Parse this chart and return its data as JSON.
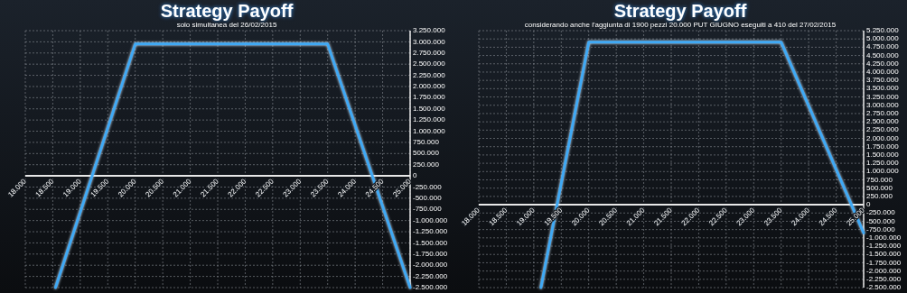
{
  "chart_data": [
    {
      "type": "line",
      "title": "Strategy Payoff",
      "subtitle": "solo simultanea del 26/02/2015",
      "series": [
        {
          "color": "#3fa9f5",
          "x": [
            18550,
            20000,
            23500,
            25000
          ],
          "values": [
            -2500000,
            2950000,
            2950000,
            -2500000
          ]
        }
      ],
      "xlim": [
        18000,
        25000
      ],
      "xticks": [
        {
          "value": 18000,
          "label": "18.000"
        },
        {
          "value": 18500,
          "label": "18.500"
        },
        {
          "value": 19000,
          "label": "19.000"
        },
        {
          "value": 19500,
          "label": "19.500"
        },
        {
          "value": 20000,
          "label": "20.000"
        },
        {
          "value": 20500,
          "label": "20.500"
        },
        {
          "value": 21000,
          "label": "21.000"
        },
        {
          "value": 21500,
          "label": "21.500"
        },
        {
          "value": 22000,
          "label": "22.000"
        },
        {
          "value": 22500,
          "label": "22.500"
        },
        {
          "value": 23000,
          "label": "23.000"
        },
        {
          "value": 23500,
          "label": "23.500"
        },
        {
          "value": 24000,
          "label": "24.000"
        },
        {
          "value": 24500,
          "label": "24.500"
        },
        {
          "value": 25000,
          "label": "25.000"
        }
      ],
      "ylim": [
        -2500000,
        3250000
      ],
      "yticks": [
        {
          "value": -2500000,
          "label": "-2.500.000"
        },
        {
          "value": -2250000,
          "label": "-2.250.000"
        },
        {
          "value": -2000000,
          "label": "-2.000.000"
        },
        {
          "value": -1750000,
          "label": "-1.750.000"
        },
        {
          "value": -1500000,
          "label": "-1.500.000"
        },
        {
          "value": -1250000,
          "label": "-1.250.000"
        },
        {
          "value": -1000000,
          "label": "-1.000.000"
        },
        {
          "value": -750000,
          "label": "-750.000"
        },
        {
          "value": -500000,
          "label": "-500.000"
        },
        {
          "value": -250000,
          "label": "-250.000"
        },
        0,
        {
          "value": 250000,
          "label": "250.000"
        },
        {
          "value": 500000,
          "label": "500.000"
        },
        {
          "value": 750000,
          "label": "750.000"
        },
        {
          "value": 1000000,
          "label": "1.000.000"
        },
        {
          "value": 1250000,
          "label": "1.250.000"
        },
        {
          "value": 1500000,
          "label": "1.500.000"
        },
        {
          "value": 1750000,
          "label": "1.750.000"
        },
        {
          "value": 2000000,
          "label": "2.000.000"
        },
        {
          "value": 2250000,
          "label": "2.250.000"
        },
        {
          "value": 2500000,
          "label": "2.500.000"
        },
        {
          "value": 2750000,
          "label": "2.750.000"
        },
        {
          "value": 3000000,
          "label": "3.000.000"
        },
        {
          "value": 3250000,
          "label": "3.250.000"
        }
      ],
      "grid": true,
      "marker": "none",
      "line_style": "solid"
    },
    {
      "type": "line",
      "title": "Strategy Payoff",
      "subtitle": "considerando anche l'aggiunta di 1900 pezzi 20.000 PUT GIUGNO eseguiti a 410 del 27/02/2015",
      "series": [
        {
          "color": "#3fa9f5",
          "x": [
            19130,
            20000,
            23500,
            25000
          ],
          "values": [
            -2500000,
            4900000,
            4900000,
            -850000
          ]
        }
      ],
      "xlim": [
        18000,
        25000
      ],
      "xticks": [
        {
          "value": 18000,
          "label": "18.000"
        },
        {
          "value": 18500,
          "label": "18.500"
        },
        {
          "value": 19000,
          "label": "19.000"
        },
        {
          "value": 19500,
          "label": "19.500"
        },
        {
          "value": 20000,
          "label": "20.000"
        },
        {
          "value": 20500,
          "label": "20.500"
        },
        {
          "value": 21000,
          "label": "21.000"
        },
        {
          "value": 21500,
          "label": "21.500"
        },
        {
          "value": 22000,
          "label": "22.000"
        },
        {
          "value": 22500,
          "label": "22.500"
        },
        {
          "value": 23000,
          "label": "23.000"
        },
        {
          "value": 23500,
          "label": "23.500"
        },
        {
          "value": 24000,
          "label": "24.000"
        },
        {
          "value": 24500,
          "label": "24.500"
        },
        {
          "value": 25000,
          "label": "25.000"
        }
      ],
      "ylim": [
        -2500000,
        5250000
      ],
      "yticks": [
        {
          "value": -2500000,
          "label": "-2.500.000"
        },
        {
          "value": -2250000,
          "label": "-2.250.000"
        },
        {
          "value": -2000000,
          "label": "-2.000.000"
        },
        {
          "value": -1750000,
          "label": "-1.750.000"
        },
        {
          "value": -1500000,
          "label": "-1.500.000"
        },
        {
          "value": -1250000,
          "label": "-1.250.000"
        },
        {
          "value": -1000000,
          "label": "-1.000.000"
        },
        {
          "value": -750000,
          "label": "-750.000"
        },
        {
          "value": -500000,
          "label": "-500.000"
        },
        {
          "value": -250000,
          "label": "-250.000"
        },
        0,
        {
          "value": 250000,
          "label": "250.000"
        },
        {
          "value": 500000,
          "label": "500.000"
        },
        {
          "value": 750000,
          "label": "750.000"
        },
        {
          "value": 1000000,
          "label": "1.000.000"
        },
        {
          "value": 1250000,
          "label": "1.250.000"
        },
        {
          "value": 1500000,
          "label": "1.500.000"
        },
        {
          "value": 1750000,
          "label": "1.750.000"
        },
        {
          "value": 2000000,
          "label": "2.000.000"
        },
        {
          "value": 2250000,
          "label": "2.250.000"
        },
        {
          "value": 2500000,
          "label": "2.500.000"
        },
        {
          "value": 2750000,
          "label": "2.750.000"
        },
        {
          "value": 3000000,
          "label": "3.000.000"
        },
        {
          "value": 3250000,
          "label": "3.250.000"
        },
        {
          "value": 3500000,
          "label": "3.500.000"
        },
        {
          "value": 3750000,
          "label": "3.750.000"
        },
        {
          "value": 4000000,
          "label": "4.000.000"
        },
        {
          "value": 4250000,
          "label": "4.250.000"
        },
        {
          "value": 4500000,
          "label": "4.500.000"
        },
        {
          "value": 4750000,
          "label": "4.750.000"
        },
        {
          "value": 5000000,
          "label": "5.000.000"
        },
        {
          "value": 5250000,
          "label": "5.250.000"
        }
      ],
      "grid": true,
      "marker": "none",
      "line_style": "solid"
    }
  ]
}
